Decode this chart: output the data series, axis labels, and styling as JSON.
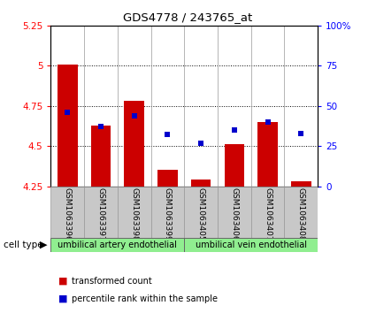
{
  "title": "GDS4778 / 243765_at",
  "samples": [
    "GSM1063396",
    "GSM1063397",
    "GSM1063398",
    "GSM1063399",
    "GSM1063405",
    "GSM1063406",
    "GSM1063407",
    "GSM1063408"
  ],
  "transformed_count": [
    5.01,
    4.63,
    4.78,
    4.35,
    4.29,
    4.51,
    4.65,
    4.28
  ],
  "percentile_rank": [
    46,
    37,
    44,
    32,
    27,
    35,
    40,
    33
  ],
  "ylim_left": [
    4.25,
    5.25
  ],
  "ylim_right": [
    0,
    100
  ],
  "yticks_left": [
    4.25,
    4.5,
    4.75,
    5.0,
    5.25
  ],
  "yticks_right": [
    0,
    25,
    50,
    75,
    100
  ],
  "ytick_labels_left": [
    "4.25",
    "4.5",
    "4.75",
    "5",
    "5.25"
  ],
  "ytick_labels_right": [
    "0",
    "25",
    "50",
    "75",
    "100%"
  ],
  "grid_lines": [
    4.5,
    4.75,
    5.0
  ],
  "cell_type_groups": [
    {
      "label": "umbilical artery endothelial",
      "count": 4,
      "color": "#90EE90"
    },
    {
      "label": "umbilical vein endothelial",
      "count": 4,
      "color": "#90EE90"
    }
  ],
  "bar_color": "#CC0000",
  "dot_color": "#0000CC",
  "bar_width": 0.6,
  "background_color": "#ffffff",
  "bar_bottom": 4.25,
  "legend_items": [
    {
      "label": "transformed count",
      "color": "#CC0000"
    },
    {
      "label": "percentile rank within the sample",
      "color": "#0000CC"
    }
  ],
  "cell_type_label": "cell type",
  "xlabel_bg": "#C8C8C8"
}
